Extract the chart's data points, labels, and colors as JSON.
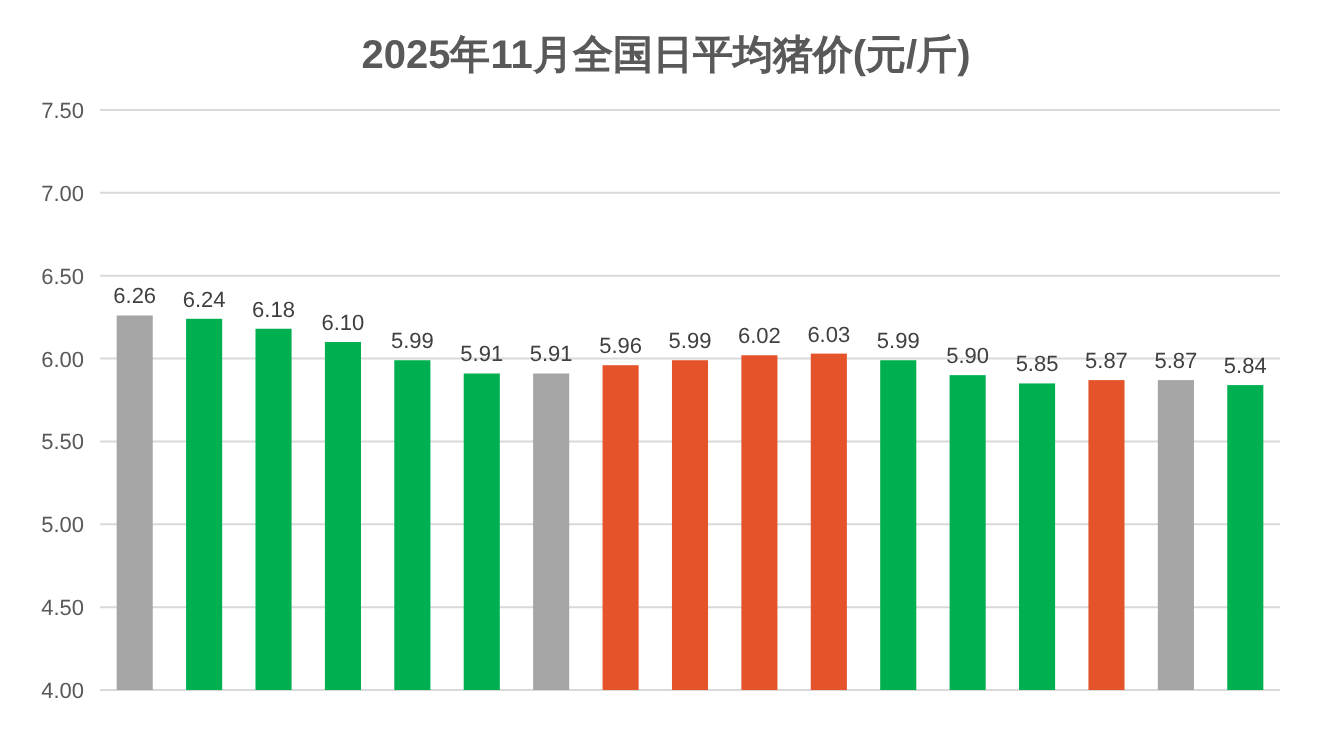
{
  "chart_data": {
    "type": "bar",
    "title": "2025年11月全国日平均猪价(元/斤)",
    "categories": [
      null,
      null,
      null,
      null,
      null,
      null,
      null,
      null,
      null,
      null,
      null,
      null,
      null,
      null,
      null,
      null,
      null
    ],
    "values": [
      6.26,
      6.24,
      6.18,
      6.1,
      5.99,
      5.91,
      5.91,
      5.96,
      5.99,
      6.02,
      6.03,
      5.99,
      5.9,
      5.85,
      5.87,
      5.87,
      5.84
    ],
    "value_labels": [
      "6.26",
      "6.24",
      "6.18",
      "6.10",
      "5.99",
      "5.91",
      "5.91",
      "5.96",
      "5.99",
      "6.02",
      "6.03",
      "5.99",
      "5.90",
      "5.85",
      "5.87",
      "5.87",
      "5.84"
    ],
    "colors": [
      "#a5a5a5",
      "#00b050",
      "#00b050",
      "#00b050",
      "#00b050",
      "#00b050",
      "#a5a5a5",
      "#e5532a",
      "#e5532a",
      "#e5532a",
      "#e5532a",
      "#00b050",
      "#00b050",
      "#00b050",
      "#e5532a",
      "#a5a5a5",
      "#00b050"
    ],
    "ylim": [
      4.0,
      7.5
    ],
    "yticks": [
      {
        "value": 4.0,
        "label": "4.00"
      },
      {
        "value": 4.5,
        "label": "4.50"
      },
      {
        "value": 5.0,
        "label": "5.00"
      },
      {
        "value": 5.5,
        "label": "5.50"
      },
      {
        "value": 6.0,
        "label": "6.00"
      },
      {
        "value": 6.5,
        "label": "6.50"
      },
      {
        "value": 7.0,
        "label": "7.00"
      },
      {
        "value": 7.5,
        "label": "7.50"
      }
    ],
    "grid": "y"
  }
}
